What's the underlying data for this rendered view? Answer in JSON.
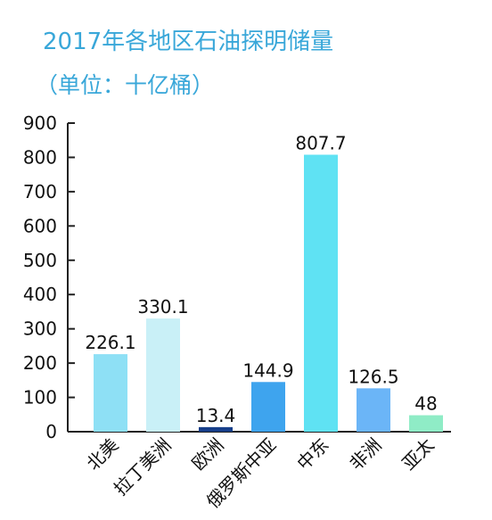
{
  "chart_data": {
    "type": "bar",
    "title": "2017年各地区石油探明储量",
    "subtitle": "（单位：十亿桶）",
    "categories": [
      "北美",
      "拉丁美洲",
      "欧洲",
      "俄罗斯中亚",
      "中东",
      "非洲",
      "亚太"
    ],
    "values": [
      226.1,
      330.1,
      13.4,
      144.9,
      807.7,
      126.5,
      48
    ],
    "value_labels": [
      "226.1",
      "330.1",
      "13.4",
      "144.9",
      "807.7",
      "126.5",
      "48"
    ],
    "colors": [
      "#8ee0f5",
      "#c9f0f7",
      "#173f8a",
      "#3ea4ee",
      "#5fe2f3",
      "#6bb5f7",
      "#8fecc6"
    ],
    "ylim": [
      0,
      900
    ],
    "yticks": [
      0,
      100,
      200,
      300,
      400,
      500,
      600,
      700,
      800,
      900
    ],
    "xlabel": "",
    "ylabel": "",
    "grid": false,
    "legend": "none"
  }
}
